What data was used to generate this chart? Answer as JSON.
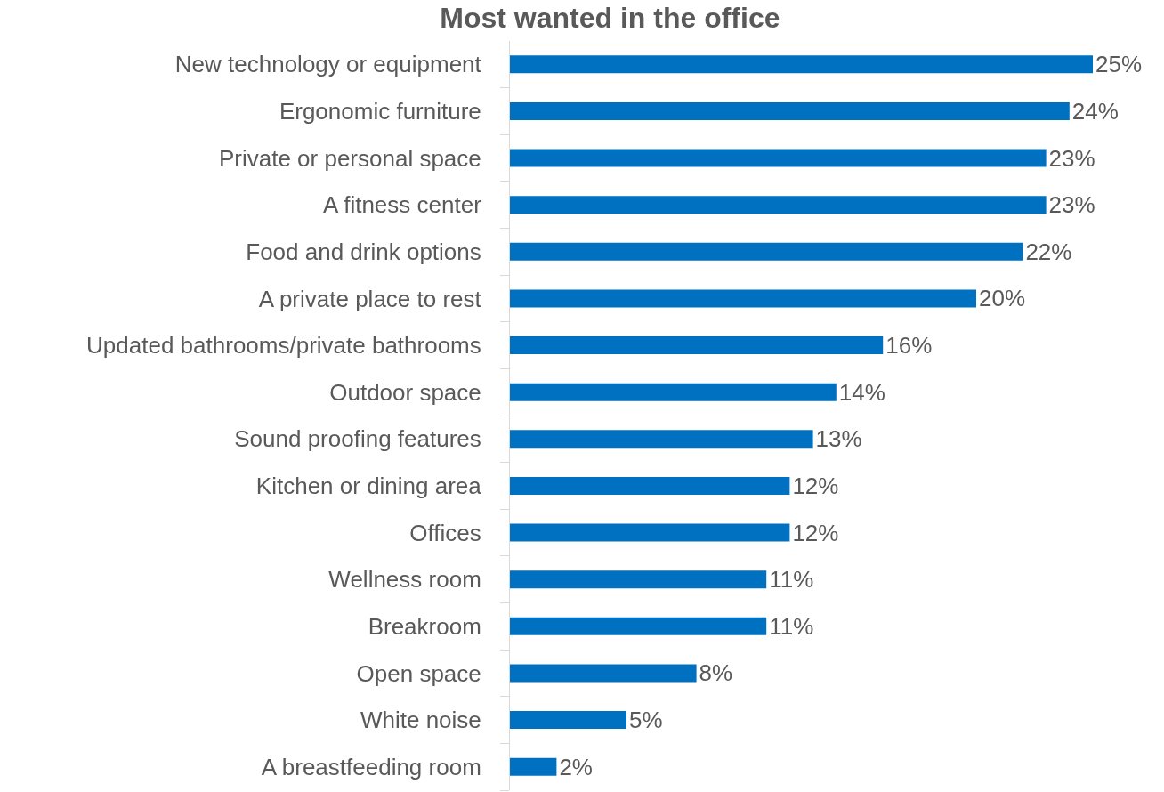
{
  "chart_data": {
    "type": "bar",
    "orientation": "horizontal",
    "title": "Most wanted in the office",
    "categories": [
      "New technology or equipment",
      "Ergonomic furniture",
      "Private or personal space",
      "A fitness center",
      "Food and drink options",
      "A private place to rest",
      "Updated bathrooms/private bathrooms",
      "Outdoor space",
      "Sound proofing features",
      "Kitchen or dining area",
      "Offices",
      "Wellness room",
      "Breakroom",
      "Open space",
      "White noise",
      "A breastfeeding room"
    ],
    "values": [
      25,
      24,
      23,
      23,
      22,
      20,
      16,
      14,
      13,
      12,
      12,
      11,
      11,
      8,
      5,
      2
    ],
    "value_labels": [
      "25%",
      "24%",
      "23%",
      "23%",
      "22%",
      "20%",
      "16%",
      "14%",
      "13%",
      "12%",
      "12%",
      "11%",
      "11%",
      "8%",
      "5%",
      "2%"
    ],
    "color": "#0070c0",
    "legend": false
  }
}
